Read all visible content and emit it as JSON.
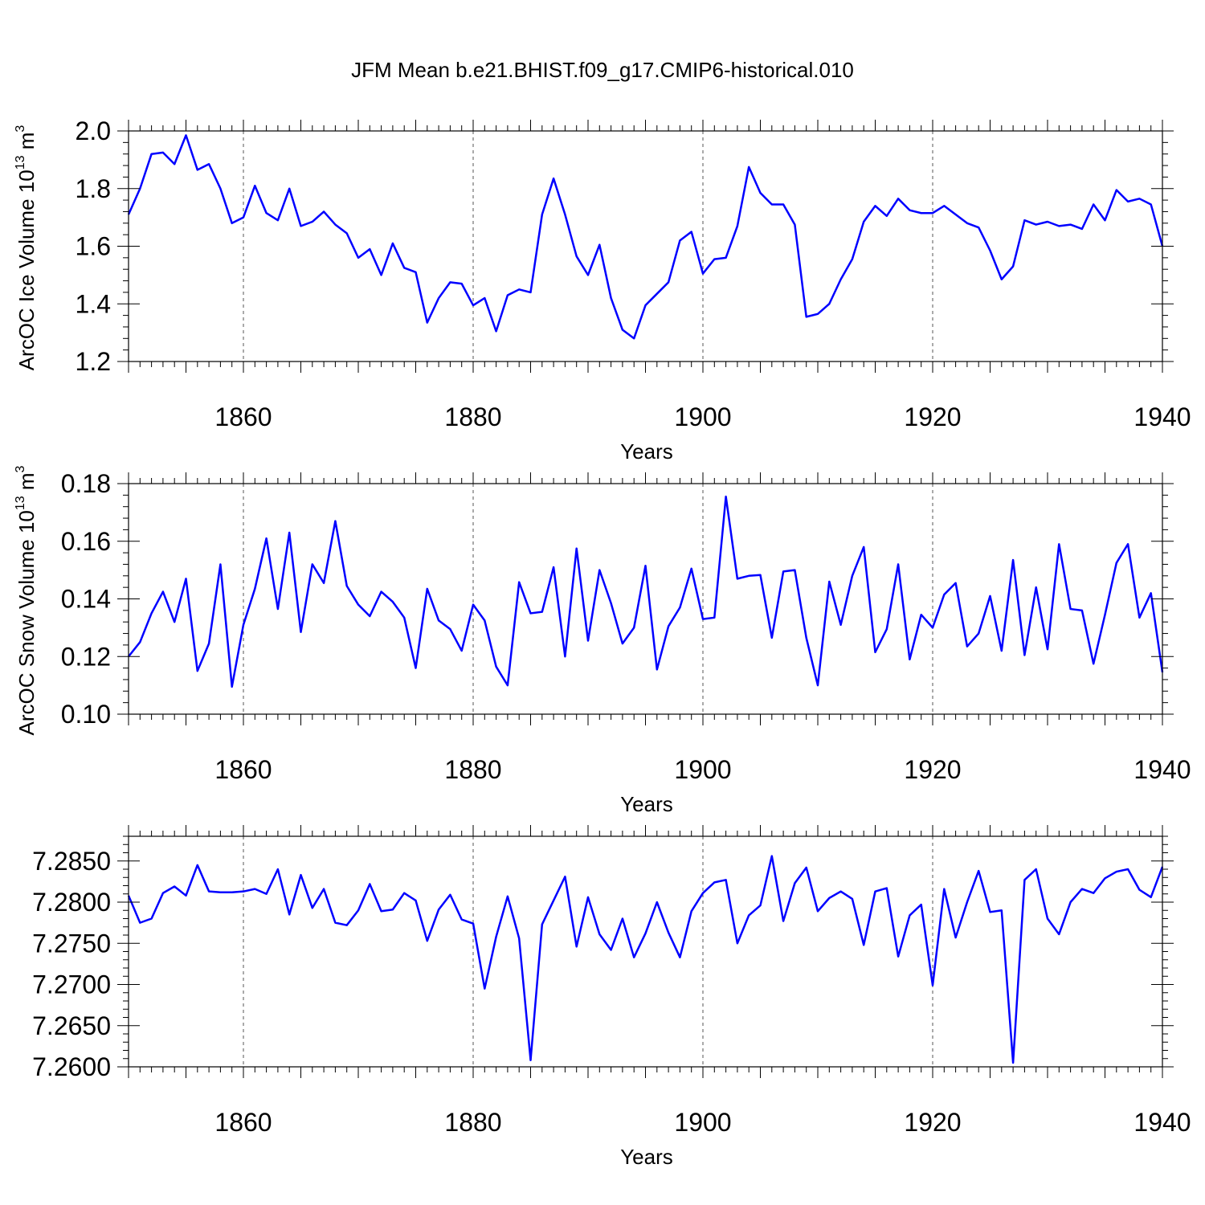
{
  "title": "JFM Mean b.e21.BHIST.f09_g17.CMIP6-historical.010",
  "colors": {
    "series": "#0000ff"
  },
  "chart_data": [
    {
      "type": "line",
      "xlabel": "Years",
      "ylabel": "ArcOC Ice Volume 10",
      "ylabel_sup": "13",
      "ylabel_unit": " m",
      "ylabel_unit_sup": "3",
      "xlim": [
        1850,
        1940
      ],
      "ylim": [
        1.2,
        2.0
      ],
      "yticks": [
        1.2,
        1.4,
        1.6,
        1.8,
        2.0
      ],
      "ytick_labels": [
        "1.2",
        "1.4",
        "1.6",
        "1.8",
        "2.0"
      ],
      "xticks": [
        1860,
        1880,
        1900,
        1920,
        1940
      ],
      "xtick_labels": [
        "1860",
        "1880",
        "1900",
        "1920",
        "1940"
      ],
      "x_start": 1850,
      "values": [
        1.71,
        1.8,
        1.92,
        1.925,
        1.885,
        1.985,
        1.865,
        1.885,
        1.8,
        1.68,
        1.7,
        1.81,
        1.715,
        1.69,
        1.8,
        1.67,
        1.685,
        1.72,
        1.675,
        1.645,
        1.56,
        1.59,
        1.5,
        1.61,
        1.525,
        1.51,
        1.335,
        1.42,
        1.475,
        1.47,
        1.395,
        1.42,
        1.305,
        1.43,
        1.45,
        1.44,
        1.71,
        1.835,
        1.71,
        1.565,
        1.5,
        1.605,
        1.42,
        1.31,
        1.28,
        1.395,
        1.435,
        1.475,
        1.62,
        1.65,
        1.505,
        1.555,
        1.56,
        1.67,
        1.875,
        1.785,
        1.745,
        1.745,
        1.675,
        1.355,
        1.365,
        1.4,
        1.485,
        1.555,
        1.685,
        1.74,
        1.705,
        1.765,
        1.725,
        1.715,
        1.715,
        1.74,
        1.71,
        1.68,
        1.665,
        1.585,
        1.485,
        1.53,
        1.69,
        1.675,
        1.685,
        1.67,
        1.675,
        1.66,
        1.745,
        1.69,
        1.795,
        1.755,
        1.765,
        1.745,
        1.6
      ]
    },
    {
      "type": "line",
      "xlabel": "Years",
      "ylabel": "ArcOC Snow Volume 10",
      "ylabel_sup": "13",
      "ylabel_unit": " m",
      "ylabel_unit_sup": "3",
      "xlim": [
        1850,
        1940
      ],
      "ylim": [
        0.1,
        0.18
      ],
      "yticks": [
        0.1,
        0.12,
        0.14,
        0.16,
        0.18
      ],
      "ytick_labels": [
        "0.10",
        "0.12",
        "0.14",
        "0.16",
        "0.18"
      ],
      "xticks": [
        1860,
        1880,
        1900,
        1920,
        1940
      ],
      "xtick_labels": [
        "1860",
        "1880",
        "1900",
        "1920",
        "1940"
      ],
      "x_start": 1850,
      "values": [
        0.12,
        0.125,
        0.135,
        0.1425,
        0.132,
        0.147,
        0.115,
        0.1245,
        0.152,
        0.1095,
        0.131,
        0.1435,
        0.161,
        0.1365,
        0.163,
        0.1285,
        0.152,
        0.1455,
        0.167,
        0.1445,
        0.138,
        0.134,
        0.1425,
        0.139,
        0.1335,
        0.116,
        0.1435,
        0.1325,
        0.1295,
        0.122,
        0.138,
        0.1325,
        0.1165,
        0.11,
        0.1458,
        0.135,
        0.1355,
        0.151,
        0.12,
        0.1575,
        0.1255,
        0.15,
        0.1385,
        0.1245,
        0.13,
        0.1515,
        0.1155,
        0.1305,
        0.137,
        0.1505,
        0.133,
        0.1335,
        0.1755,
        0.147,
        0.148,
        0.1483,
        0.1265,
        0.1495,
        0.15,
        0.1265,
        0.11,
        0.146,
        0.131,
        0.148,
        0.158,
        0.1215,
        0.1295,
        0.152,
        0.119,
        0.1345,
        0.13,
        0.1415,
        0.1455,
        0.1235,
        0.128,
        0.141,
        0.122,
        0.1535,
        0.1205,
        0.144,
        0.1225,
        0.159,
        0.1365,
        0.136,
        0.1175,
        0.1345,
        0.1525,
        0.159,
        0.1335,
        0.142,
        0.1145
      ]
    },
    {
      "type": "line",
      "xlabel": "Years",
      "ylabel": "",
      "xlim": [
        1850,
        1940
      ],
      "ylim": [
        7.26,
        7.288
      ],
      "yticks": [
        7.26,
        7.265,
        7.27,
        7.275,
        7.28,
        7.285
      ],
      "ytick_labels": [
        "7.2600",
        "7.2650",
        "7.2700",
        "7.2750",
        "7.2800",
        "7.2850"
      ],
      "xticks": [
        1860,
        1880,
        1900,
        1920,
        1940
      ],
      "xtick_labels": [
        "1860",
        "1880",
        "1900",
        "1920",
        "1940"
      ],
      "x_start": 1850,
      "values": [
        7.2808,
        7.2775,
        7.278,
        7.2811,
        7.2819,
        7.2808,
        7.2845,
        7.2813,
        7.2812,
        7.2812,
        7.2813,
        7.2816,
        7.281,
        7.284,
        7.2785,
        7.2833,
        7.2793,
        7.2816,
        7.2775,
        7.2772,
        7.279,
        7.2822,
        7.2789,
        7.2791,
        7.2811,
        7.2802,
        7.2753,
        7.2791,
        7.2809,
        7.2779,
        7.2774,
        7.2695,
        7.2758,
        7.2807,
        7.2756,
        7.2608,
        7.2773,
        7.2802,
        7.2831,
        7.2746,
        7.2806,
        7.2761,
        7.2742,
        7.278,
        7.2733,
        7.2762,
        7.28,
        7.2763,
        7.2733,
        7.2789,
        7.2811,
        7.2824,
        7.2827,
        7.275,
        7.2784,
        7.2796,
        7.2856,
        7.2777,
        7.2823,
        7.2842,
        7.2789,
        7.2805,
        7.2813,
        7.2804,
        7.2748,
        7.2813,
        7.2817,
        7.2734,
        7.2784,
        7.2797,
        7.2699,
        7.2816,
        7.2757,
        7.28,
        7.2838,
        7.2788,
        7.279,
        7.2605,
        7.2827,
        7.284,
        7.278,
        7.2761,
        7.28,
        7.2816,
        7.2811,
        7.2829,
        7.2837,
        7.284,
        7.2815,
        7.2806,
        7.2843
      ]
    }
  ]
}
